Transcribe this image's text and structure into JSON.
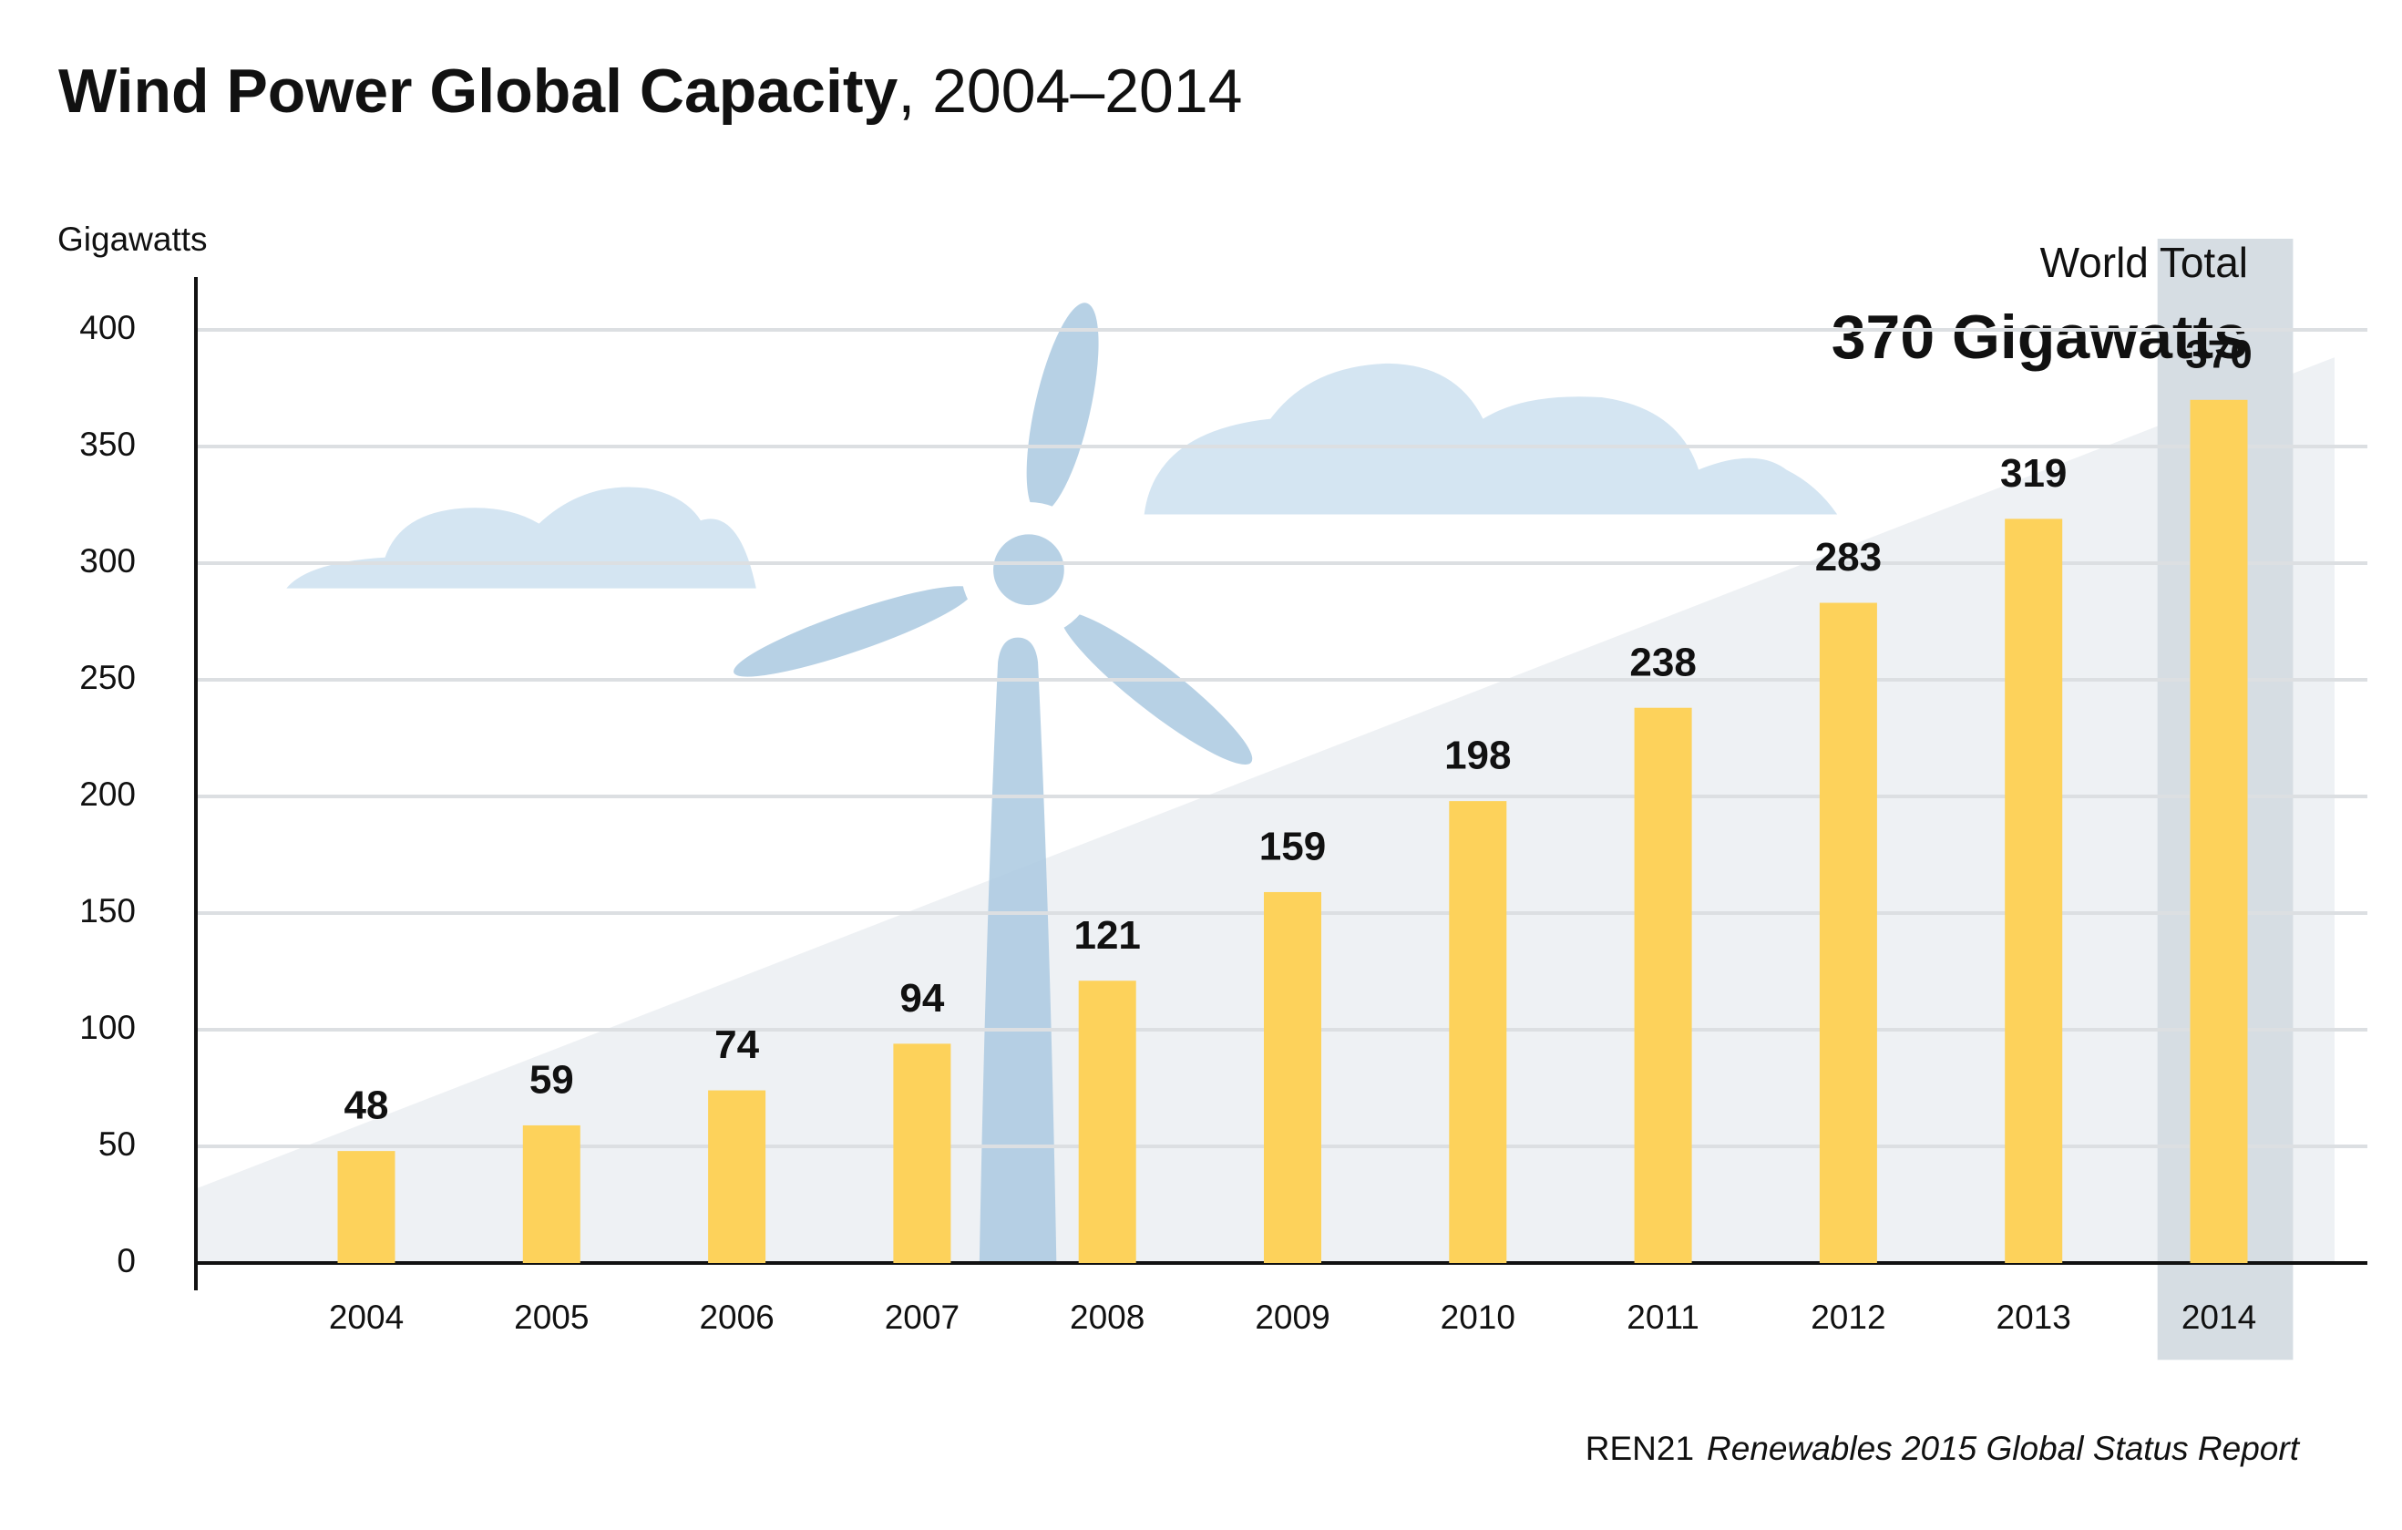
{
  "chart_data": {
    "type": "bar",
    "title": "Wind Power Global Capacity",
    "title_suffix": ", 2004–2014",
    "y_label": "Gigawatts",
    "annotation_label": "World Total",
    "annotation_value": "370 Gigawatts",
    "source": "REN21",
    "source_title": "Renewables 2015 Global Status Report",
    "categories": [
      "2004",
      "2005",
      "2006",
      "2007",
      "2008",
      "2009",
      "2010",
      "2011",
      "2012",
      "2013",
      "2014"
    ],
    "values": [
      48,
      59,
      74,
      94,
      121,
      159,
      198,
      238,
      283,
      319,
      370
    ],
    "color": "#fdd25b",
    "ylim": [
      0,
      400
    ],
    "yticks": [
      0,
      50,
      100,
      150,
      200,
      250,
      300,
      350,
      400
    ],
    "grid": true
  }
}
